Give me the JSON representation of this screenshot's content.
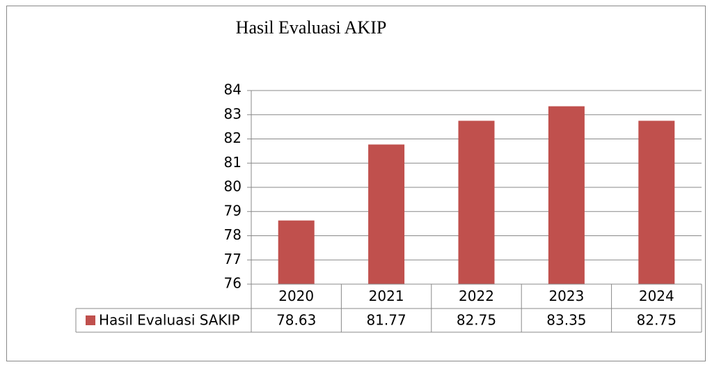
{
  "chart_data": {
    "type": "bar",
    "title": "Hasil Evaluasi AKIP",
    "categories": [
      "2020",
      "2021",
      "2022",
      "2023",
      "2024"
    ],
    "series": [
      {
        "name": "Hasil Evaluasi SAKIP",
        "color": "#c0504d",
        "values": [
          78.63,
          81.77,
          82.75,
          83.35,
          82.75
        ]
      }
    ],
    "ylim": [
      76,
      84
    ],
    "yticks": [
      76,
      77,
      78,
      79,
      80,
      81,
      82,
      83,
      84
    ],
    "grid": true,
    "data_table": true
  }
}
